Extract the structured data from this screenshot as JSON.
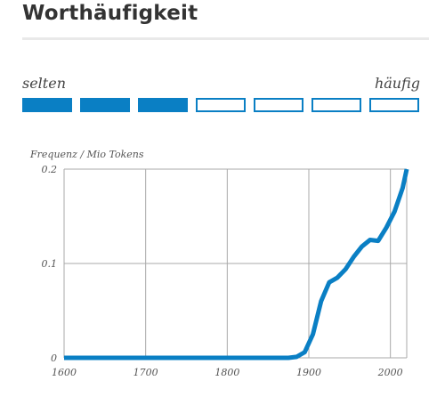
{
  "header": {
    "title": "Worthäufigkeit"
  },
  "frequency_scale": {
    "left_label": "selten",
    "right_label": "häufig",
    "total_levels": 7,
    "filled_levels": 3,
    "color": "#0a7fc4"
  },
  "chart_data": {
    "type": "line",
    "ylabel": "Frequenz / Mio Tokens",
    "xlabel": "",
    "xlim": [
      1600,
      2020
    ],
    "ylim": [
      0,
      0.2
    ],
    "xticks": [
      1600,
      1700,
      1800,
      1900,
      2000
    ],
    "xtick_labels": [
      "1600",
      "1700",
      "1800",
      "1900",
      "2000"
    ],
    "yticks": [
      0,
      0.1,
      0.2
    ],
    "ytick_labels": [
      "0",
      "0.1",
      "0.2"
    ],
    "grid": true,
    "line_color": "#0a7fc4",
    "series": [
      {
        "x": [
          1600,
          1650,
          1700,
          1750,
          1800,
          1850,
          1875,
          1885,
          1895,
          1905,
          1915,
          1925,
          1935,
          1945,
          1955,
          1965,
          1975,
          1985,
          1995,
          2005,
          2015,
          2020
        ],
        "y": [
          0,
          0,
          0,
          0,
          0,
          0,
          0,
          0.001,
          0.006,
          0.025,
          0.06,
          0.08,
          0.085,
          0.094,
          0.107,
          0.118,
          0.125,
          0.124,
          0.138,
          0.155,
          0.18,
          0.2
        ]
      }
    ]
  }
}
